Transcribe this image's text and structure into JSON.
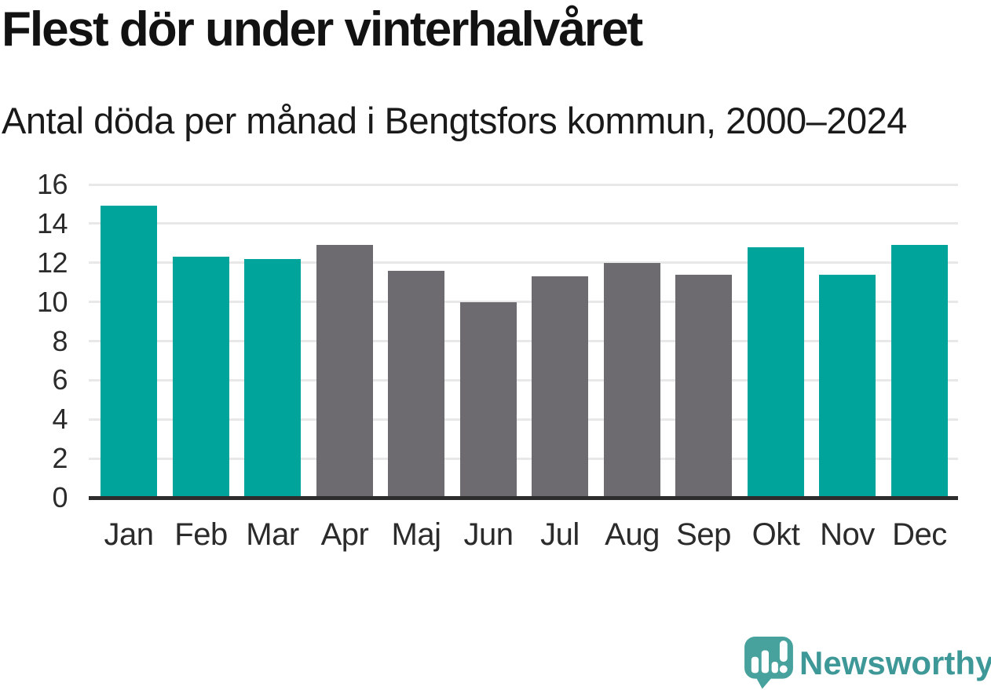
{
  "title": "Flest dör under vinterhalvåret",
  "subtitle": "Antal döda per månad i Bengtsfors kommun, 2000–2024",
  "chart_data": {
    "type": "bar",
    "title": "Flest dör under vinterhalvåret",
    "subtitle": "Antal döda per månad i Bengtsfors kommun, 2000–2024",
    "categories": [
      "Jan",
      "Feb",
      "Mar",
      "Apr",
      "Maj",
      "Jun",
      "Jul",
      "Aug",
      "Sep",
      "Okt",
      "Nov",
      "Dec"
    ],
    "values": [
      14.9,
      12.3,
      12.2,
      12.9,
      11.6,
      10,
      11.3,
      12,
      11.4,
      12.8,
      11.4,
      12.9
    ],
    "bar_groups": [
      "winter",
      "winter",
      "winter",
      "summer",
      "summer",
      "summer",
      "summer",
      "summer",
      "summer",
      "winter",
      "winter",
      "winter"
    ],
    "palette": {
      "winter": "#00a49b",
      "summer": "#6e6b70"
    },
    "xlabel": "",
    "ylabel": "",
    "ylim": [
      0,
      16
    ],
    "yticks": [
      0,
      2,
      4,
      6,
      8,
      10,
      12,
      14,
      16
    ],
    "grid": true,
    "legend": "none",
    "gridline_color": "#e8e8e8",
    "axis_color": "#2d2d2d"
  },
  "branding": {
    "logo_text": "Newsworthy",
    "logo_color": "#3d9897",
    "logo_icon": "speech-bubble-bar-chart-icon"
  }
}
